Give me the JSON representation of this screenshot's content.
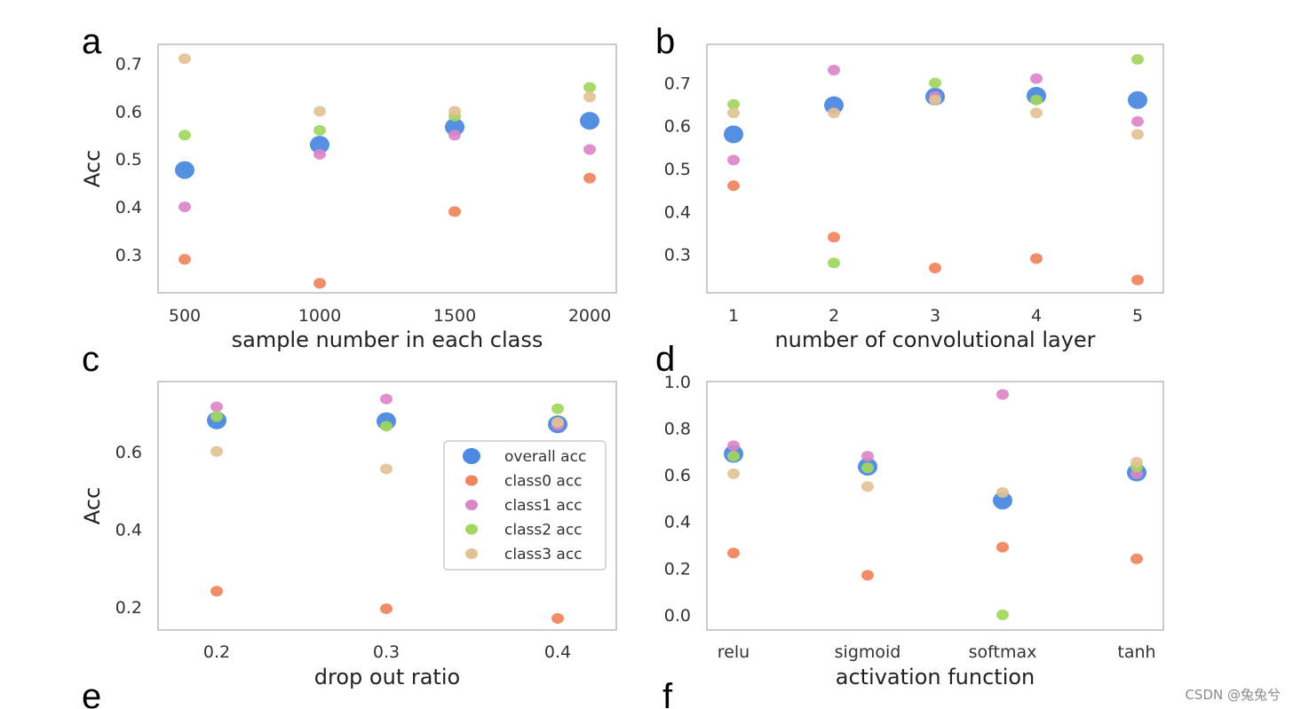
{
  "colors": {
    "overall": "#4C89E0",
    "class0": "#F0845C",
    "class1": "#DC86C8",
    "class2": "#A3D65E",
    "class3": "#E2C295",
    "frame": "#cccccc"
  },
  "legend": [
    "overall acc",
    "class0 acc",
    "class1 acc",
    "class2 acc",
    "class3 acc"
  ],
  "watermark": "CSDN @兔兔兮",
  "chart_data": [
    {
      "type": "scatter",
      "panel": "a",
      "title": "",
      "xlabel": "sample number in each class",
      "ylabel": "Acc",
      "categories": [
        "500",
        "1000",
        "1500",
        "2000"
      ],
      "yticks": [
        0.3,
        0.4,
        0.5,
        0.6,
        0.7
      ],
      "ytick_labels": [
        "0.3",
        "0.4",
        "0.5",
        "0.6",
        "0.7"
      ],
      "ylim": [
        0.22,
        0.74
      ],
      "series": [
        {
          "name": "overall acc",
          "values": [
            0.477,
            0.53,
            0.567,
            0.58
          ]
        },
        {
          "name": "class0 acc",
          "values": [
            0.29,
            0.24,
            0.39,
            0.46
          ]
        },
        {
          "name": "class1 acc",
          "values": [
            0.4,
            0.51,
            0.55,
            0.52
          ]
        },
        {
          "name": "class2 acc",
          "values": [
            0.55,
            0.56,
            0.59,
            0.65
          ]
        },
        {
          "name": "class3 acc",
          "values": [
            0.71,
            0.6,
            0.6,
            0.63
          ]
        }
      ]
    },
    {
      "type": "scatter",
      "panel": "b",
      "title": "",
      "xlabel": "number of convolutional layer",
      "ylabel": "",
      "categories": [
        "1",
        "2",
        "3",
        "4",
        "5"
      ],
      "yticks": [
        0.3,
        0.4,
        0.5,
        0.6,
        0.7
      ],
      "ytick_labels": [
        "0.3",
        "0.4",
        "0.5",
        "0.6",
        "0.7"
      ],
      "ylim": [
        0.21,
        0.79
      ],
      "series": [
        {
          "name": "overall acc",
          "values": [
            0.58,
            0.648,
            0.668,
            0.67,
            0.66
          ]
        },
        {
          "name": "class0 acc",
          "values": [
            0.46,
            0.34,
            0.268,
            0.29,
            0.24
          ]
        },
        {
          "name": "class1 acc",
          "values": [
            0.52,
            0.73,
            0.668,
            0.71,
            0.61
          ]
        },
        {
          "name": "class2 acc",
          "values": [
            0.65,
            0.28,
            0.7,
            0.66,
            0.755
          ]
        },
        {
          "name": "class3 acc",
          "values": [
            0.63,
            0.63,
            0.66,
            0.63,
            0.58
          ]
        }
      ]
    },
    {
      "type": "scatter",
      "panel": "c",
      "title": "",
      "xlabel": "drop out ratio",
      "ylabel": "Acc",
      "categories": [
        "0.2",
        "0.3",
        "0.4"
      ],
      "yticks": [
        0.2,
        0.4,
        0.6
      ],
      "ytick_labels": [
        "0.2",
        "0.4",
        "0.6"
      ],
      "ylim": [
        0.14,
        0.78
      ],
      "legend_position": "center-right",
      "series": [
        {
          "name": "overall acc",
          "values": [
            0.68,
            0.678,
            0.67
          ]
        },
        {
          "name": "class0 acc",
          "values": [
            0.24,
            0.195,
            0.17
          ]
        },
        {
          "name": "class1 acc",
          "values": [
            0.715,
            0.735,
            0.668
          ]
        },
        {
          "name": "class2 acc",
          "values": [
            0.69,
            0.665,
            0.71
          ]
        },
        {
          "name": "class3 acc",
          "values": [
            0.6,
            0.555,
            0.675
          ]
        }
      ]
    },
    {
      "type": "scatter",
      "panel": "d",
      "title": "",
      "xlabel": "activation function",
      "ylabel": "",
      "categories": [
        "relu",
        "sigmoid",
        "softmax",
        "tanh"
      ],
      "yticks": [
        0.0,
        0.2,
        0.4,
        0.6,
        0.8,
        1.0
      ],
      "ytick_labels": [
        "0.0",
        "0.2",
        "0.4",
        "0.6",
        "0.8",
        "1.0"
      ],
      "ylim": [
        -0.065,
        1.0
      ],
      "series": [
        {
          "name": "overall acc",
          "values": [
            0.69,
            0.635,
            0.49,
            0.61
          ]
        },
        {
          "name": "class0 acc",
          "values": [
            0.265,
            0.17,
            0.29,
            0.24
          ]
        },
        {
          "name": "class1 acc",
          "values": [
            0.725,
            0.68,
            0.945,
            0.605
          ]
        },
        {
          "name": "class2 acc",
          "values": [
            0.68,
            0.63,
            0.0,
            0.635
          ]
        },
        {
          "name": "class3 acc",
          "values": [
            0.605,
            0.55,
            0.525,
            0.655
          ]
        }
      ]
    }
  ],
  "panel_letters": [
    "a",
    "b",
    "c",
    "d",
    "e",
    "f"
  ]
}
